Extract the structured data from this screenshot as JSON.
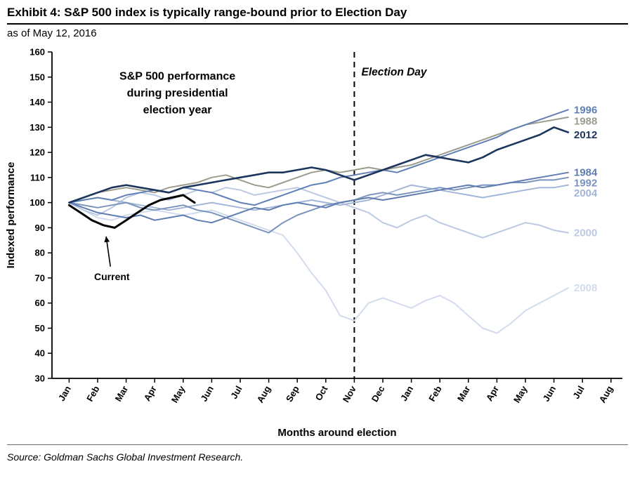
{
  "header": {
    "title": "Exhibit 4: S&P 500 index is typically range-bound prior to Election Day",
    "subtitle": "as of May 12, 2016"
  },
  "footer": {
    "source": "Source: Goldman Sachs Global Investment Research."
  },
  "chart_data": {
    "type": "line",
    "inplot_title": {
      "lines": [
        "S&P 500 performance",
        "during presidential",
        "election year"
      ],
      "x": 3.8,
      "y": 149
    },
    "election_day": {
      "label": "Election Day",
      "x": 10,
      "label_x": 10.25,
      "label_y": 152
    },
    "current": {
      "label": "Current",
      "x": 1.5,
      "y": 70.5,
      "arrow": {
        "x1": 1.45,
        "y1": 74.5,
        "x2": 1.3,
        "y2": 86.5
      }
    },
    "xlabel": "Months around election",
    "ylabel": "Indexed performance",
    "xlim": [
      -0.6,
      19.4
    ],
    "ylim": [
      30,
      160
    ],
    "ytick_step": 10,
    "xtick_labels": [
      "Jan",
      "Feb",
      "Mar",
      "Apr",
      "May",
      "Jun",
      "Jul",
      "Aug",
      "Sep",
      "Oct",
      "Nov",
      "Dec",
      "Jan",
      "Feb",
      "Mar",
      "Apr",
      "May",
      "Jun",
      "Jul",
      "Aug"
    ],
    "label_x": 17.7,
    "series": [
      {
        "name": "2008",
        "color": "#d2dcee",
        "width": 2,
        "x_start": 0,
        "x_step": 0.5,
        "values": [
          100,
          97,
          94,
          93,
          95,
          96,
          97,
          96,
          95,
          96,
          97,
          95,
          93,
          91,
          89,
          87,
          80,
          72,
          65,
          55,
          53,
          60,
          62,
          60,
          58,
          61,
          63,
          60,
          55,
          50,
          48,
          52,
          57,
          60,
          63,
          66
        ]
      },
      {
        "name": "2000",
        "color": "#bcc9e3",
        "width": 2,
        "x_start": 0,
        "x_step": 0.5,
        "values": [
          100,
          97,
          95,
          98,
          102,
          104,
          103,
          101,
          103,
          105,
          104,
          106,
          105,
          103,
          104,
          105,
          106,
          104,
          102,
          100,
          98,
          96,
          92,
          90,
          93,
          95,
          92,
          90,
          88,
          86,
          88,
          90,
          92,
          91,
          89,
          88
        ]
      },
      {
        "name": "2004",
        "color": "#a3b6d7",
        "width": 2,
        "x_start": 0,
        "x_step": 0.5,
        "values": [
          100,
          101,
          102,
          101,
          100,
          99,
          98,
          97,
          98,
          99,
          100,
          99,
          98,
          97,
          98,
          99,
          100,
          101,
          100,
          99,
          100,
          101,
          103,
          105,
          107,
          106,
          105,
          104,
          103,
          102,
          103,
          104,
          105,
          106,
          106,
          107
        ]
      },
      {
        "name": "1992",
        "color": "#7a94bf",
        "width": 2,
        "x_start": 0,
        "x_step": 0.5,
        "values": [
          100,
          99,
          98,
          99,
          100,
          98,
          97,
          98,
          99,
          97,
          96,
          94,
          92,
          90,
          88,
          92,
          95,
          97,
          99,
          100,
          101,
          103,
          104,
          103,
          104,
          105,
          106,
          105,
          106,
          107,
          107,
          108,
          108,
          109,
          109,
          110
        ]
      },
      {
        "name": "1984",
        "color": "#5f7db1",
        "width": 2,
        "x_start": 0,
        "x_step": 0.5,
        "values": [
          100,
          98,
          96,
          95,
          94,
          95,
          93,
          94,
          95,
          93,
          92,
          94,
          96,
          98,
          97,
          99,
          100,
          99,
          98,
          100,
          101,
          102,
          101,
          102,
          103,
          104,
          105,
          106,
          107,
          106,
          107,
          108,
          109,
          110,
          111,
          112
        ]
      },
      {
        "name": "1988",
        "color": "#9c9c8e",
        "width": 2,
        "x_start": 0,
        "x_step": 0.5,
        "values": [
          100,
          102,
          104,
          105,
          106,
          105,
          104,
          106,
          107,
          108,
          110,
          111,
          109,
          107,
          106,
          108,
          110,
          112,
          113,
          112,
          113,
          114,
          113,
          114,
          115,
          117,
          119,
          121,
          123,
          125,
          127,
          129,
          131,
          132,
          133,
          134
        ]
      },
      {
        "name": "1996",
        "color": "#6080b5",
        "width": 2,
        "x_start": 0,
        "x_step": 0.5,
        "values": [
          100,
          101,
          102,
          101,
          103,
          104,
          105,
          104,
          106,
          105,
          104,
          102,
          100,
          99,
          101,
          103,
          105,
          107,
          108,
          110,
          111,
          112,
          113,
          112,
          114,
          116,
          118,
          120,
          122,
          124,
          126,
          129,
          131,
          133,
          135,
          137
        ]
      },
      {
        "name": "2012",
        "color": "#1c355e",
        "width": 2.6,
        "x_start": 0,
        "x_step": 0.5,
        "values": [
          100,
          102,
          104,
          106,
          107,
          106,
          105,
          104,
          106,
          107,
          108,
          109,
          110,
          111,
          112,
          112,
          113,
          114,
          113,
          111,
          109,
          111,
          113,
          115,
          117,
          119,
          118,
          117,
          116,
          118,
          121,
          123,
          125,
          127,
          130,
          128
        ]
      },
      {
        "name": "Current",
        "color": "#000000",
        "width": 3,
        "x_start": 0,
        "x_step": 0.4,
        "values": [
          99,
          96,
          93,
          91,
          90,
          93,
          96,
          99,
          101,
          102,
          103,
          100
        ]
      }
    ],
    "series_labels": [
      {
        "text": "1996",
        "y": 137,
        "color": "#6080b5"
      },
      {
        "text": "1988",
        "y": 132.5,
        "color": "#9c9c8e"
      },
      {
        "text": "2012",
        "y": 127,
        "color": "#1c355e"
      },
      {
        "text": "1984",
        "y": 112,
        "color": "#5f7db1"
      },
      {
        "text": "1992",
        "y": 107.8,
        "color": "#7a94bf"
      },
      {
        "text": "2004",
        "y": 103.8,
        "color": "#a3b6d7"
      },
      {
        "text": "2000",
        "y": 88,
        "color": "#bcc9e3"
      },
      {
        "text": "2008",
        "y": 66,
        "color": "#d2dcee"
      }
    ]
  }
}
